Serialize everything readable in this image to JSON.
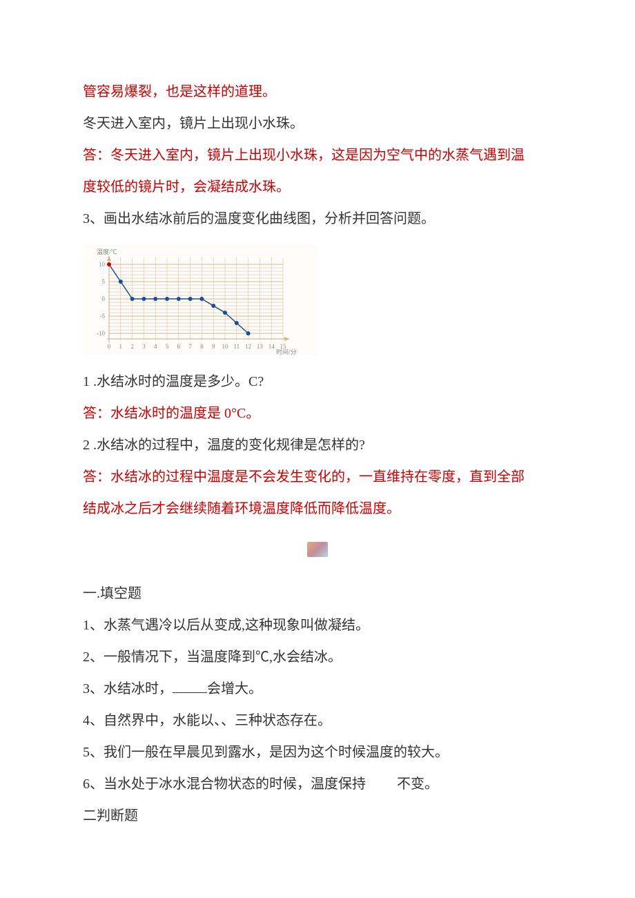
{
  "lines": {
    "l1": "管容易爆裂，也是这样的道理。",
    "l2": "冬天进入室内，镜片上出现小水珠。",
    "l3": "答：冬天进入室内，镜片上出现小水珠，这是因为空气中的水蒸气遇到温",
    "l4": "度较低的镜片时，会凝结成水珠。",
    "l5": "3、画出水结冰前后的温度变化曲线图，分析并回答问题。",
    "l6": "1 .水结冰时的温度是多少。C?",
    "l7": "答：水结冰时的温度是 0°C。",
    "l8": "2 .水结冰的过程中，温度的变化规律是怎样的?",
    "l9": "答：水结冰的过程中温度是不会发生变化的，一直维持在零度，直到全部",
    "l10": "结成冰之后才会继续随着环境温度降低而降低温度。",
    "l11": "一.填空题",
    "l12": "1、水蒸气遇冷以后从变成,这种现象叫做凝结。",
    "l13": "2、一般情况下，当温度降到℃,水会结冰。",
    "l14_a": "3、水结冰时，",
    "l14_b": "会增大。",
    "l15": "4、自然界中，水能以、、三种状态存在。",
    "l16": "5、我们一般在早晨见到露水，是因为这个时候温度的较大。",
    "l17_a": "6、当水处于冰水混合物状态的时候，温度保持",
    "l17_b": "不变。",
    "l18": "二判断题"
  },
  "chart": {
    "type": "line",
    "y_label": "温度/℃",
    "x_label": "时间/分",
    "x_values": [
      0,
      1,
      2,
      3,
      4,
      5,
      6,
      7,
      8,
      9,
      10,
      11,
      12,
      13,
      14,
      15
    ],
    "y_ticks": [
      -10,
      -5,
      0,
      5,
      10
    ],
    "xlim": [
      0,
      15
    ],
    "ylim": [
      -12,
      12
    ],
    "data_x": [
      0,
      1,
      2,
      3,
      4,
      5,
      6,
      7,
      8,
      9,
      10,
      11,
      12
    ],
    "data_y": [
      10,
      5,
      0,
      0,
      0,
      0,
      0,
      0,
      0,
      -2,
      -4,
      -7,
      -10
    ],
    "line_color": "#1a4d8f",
    "marker_color": "#1a4d8f",
    "start_marker_color": "#cc0000",
    "grid_color": "#d4b896",
    "background_color": "#fdfcf8",
    "axis_label_color": "#888888",
    "axis_label_fontsize": 9,
    "marker_size": 3,
    "line_width": 1.5
  },
  "colors": {
    "body_text": "#333333",
    "answer_text": "#cc0000",
    "background": "#ffffff"
  }
}
